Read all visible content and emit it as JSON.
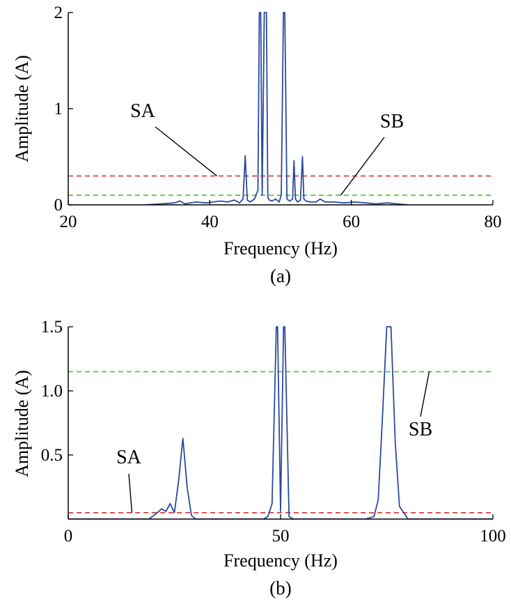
{
  "chart_data": [
    {
      "type": "line",
      "panel_label": "(a)",
      "xlabel": "Frequency (Hz)",
      "ylabel": "Amplitude (A)",
      "xlim": [
        20,
        80
      ],
      "ylim": [
        0,
        2
      ],
      "xticks": [
        20,
        40,
        60,
        80
      ],
      "yticks": [
        0,
        1,
        2
      ],
      "xtick_labels": [
        "20",
        "40",
        "60",
        "80"
      ],
      "ytick_labels": [
        "0",
        "1",
        "2"
      ],
      "series": [
        {
          "color": "#2a4aa0",
          "x": [
            31,
            33,
            35,
            35.8,
            36.5,
            38,
            39.5,
            40.5,
            41.5,
            42.5,
            43.5,
            44.2,
            44.7,
            45.0,
            45.3,
            45.7,
            46.3,
            46.8,
            47.0,
            47.2,
            47.4,
            47.7,
            48.0,
            48.2,
            48.4,
            48.8,
            49.3,
            49.8,
            50.1,
            50.4,
            50.6,
            50.9,
            51.3,
            51.7,
            51.9,
            52.1,
            52.4,
            52.8,
            53.1,
            53.3,
            53.6,
            54.2,
            55.0,
            55.6,
            56.3,
            57.5,
            59,
            60.5,
            62,
            63.5,
            65,
            66.5,
            68
          ],
          "y": [
            0.0,
            0.01,
            0.02,
            0.04,
            0.01,
            0.03,
            0.02,
            0.03,
            0.04,
            0.03,
            0.05,
            0.02,
            0.06,
            0.51,
            0.05,
            0.03,
            0.06,
            0.15,
            2.0,
            2.0,
            0.1,
            2.0,
            2.0,
            0.08,
            0.05,
            0.04,
            0.06,
            0.03,
            0.1,
            2.0,
            2.0,
            0.06,
            0.04,
            0.06,
            0.46,
            0.06,
            0.03,
            0.05,
            0.5,
            0.06,
            0.04,
            0.03,
            0.03,
            0.06,
            0.03,
            0.03,
            0.02,
            0.03,
            0.02,
            0.01,
            0.02,
            0.01,
            0.0
          ]
        }
      ],
      "hlines": [
        {
          "name": "SA",
          "y": 0.3,
          "color": "#e03030"
        },
        {
          "name": "SB",
          "y": 0.1,
          "color": "#4cbf2c"
        }
      ],
      "annotations": [
        {
          "text": "SA",
          "target_x": 41.0,
          "target_y": 0.3
        },
        {
          "text": "SB",
          "target_x": 58.5,
          "target_y": 0.1
        }
      ]
    },
    {
      "type": "line",
      "panel_label": "(b)",
      "xlabel": "Frequency (Hz)",
      "ylabel": "Amplitude (A)",
      "xlim": [
        0,
        100
      ],
      "ylim": [
        0,
        1.5
      ],
      "xticks": [
        0,
        50,
        100
      ],
      "yticks": [
        0.5,
        1.0,
        1.5
      ],
      "xtick_labels": [
        "0",
        "50",
        "100"
      ],
      "ytick_labels": [
        "0.5",
        "1.0",
        "1.5"
      ],
      "series": [
        {
          "color": "#2a4aa0",
          "x": [
            0,
            19,
            21,
            22,
            23,
            24,
            25,
            26,
            27,
            28,
            29,
            30,
            35,
            46,
            47,
            48,
            49,
            49.3,
            50,
            50.7,
            51,
            52,
            53,
            70,
            72,
            73,
            74,
            75,
            76,
            77,
            78,
            79,
            80,
            100
          ],
          "y": [
            0.0,
            0.0,
            0.05,
            0.08,
            0.06,
            0.12,
            0.05,
            0.3,
            0.63,
            0.25,
            0.03,
            0.0,
            0.0,
            0.0,
            0.02,
            0.12,
            1.5,
            1.5,
            0.06,
            1.5,
            1.5,
            0.02,
            0.0,
            0.0,
            0.02,
            0.15,
            0.8,
            1.5,
            1.5,
            0.6,
            0.1,
            0.05,
            0.0,
            0.0
          ]
        }
      ],
      "hlines": [
        {
          "name": "SA",
          "y": 0.05,
          "color": "#e03030"
        },
        {
          "name": "SB",
          "y": 1.15,
          "color": "#4cbf2c"
        }
      ],
      "annotations": [
        {
          "text": "SA",
          "target_x": 15.0,
          "target_y": 0.05
        },
        {
          "text": "SB",
          "target_x": 85.0,
          "target_y": 1.15
        }
      ]
    }
  ]
}
